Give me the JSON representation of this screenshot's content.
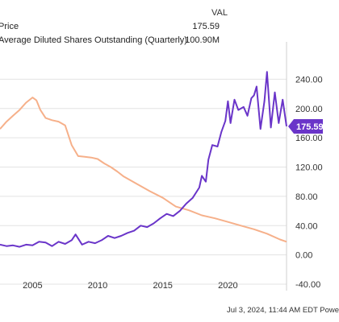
{
  "legend": {
    "header": "VAL",
    "rows": [
      {
        "name": "Price",
        "value": "175.59"
      },
      {
        "name": "Average Diluted Shares Outstanding (Quarterly)",
        "value": "100.90M"
      }
    ]
  },
  "footer": "Jul 3, 2024, 11:44 AM EDT Powe",
  "colors": {
    "price": "#6a35c9",
    "shares": "#f6b08a",
    "grid": "#e3e3e3",
    "badge": "#6a35c9"
  },
  "chart_data": {
    "type": "line",
    "x_range": [
      2002.5,
      2024.5
    ],
    "ylim": [
      -40,
      280
    ],
    "y_ticks": [
      -40,
      0,
      40,
      80,
      120,
      160,
      200,
      240
    ],
    "y_tick_labels": [
      "-40.00",
      "0.00",
      "40.00",
      "80.00",
      "120.00",
      "160.00",
      "200.00",
      "240.00"
    ],
    "x_ticks": [
      2005,
      2010,
      2015,
      2020
    ],
    "x_tick_labels": [
      "2005",
      "2010",
      "2015",
      "2020"
    ],
    "grid": "horizontal",
    "last_value_label": "175.59",
    "series": [
      {
        "name": "Price",
        "x": [
          2002.5,
          2003,
          2003.5,
          2004,
          2004.5,
          2005,
          2005.5,
          2006,
          2006.5,
          2007,
          2007.5,
          2008,
          2008.3,
          2008.8,
          2009.3,
          2009.8,
          2010.3,
          2010.8,
          2011.3,
          2011.8,
          2012.3,
          2012.8,
          2013.3,
          2013.8,
          2014.3,
          2014.8,
          2015.3,
          2015.8,
          2016.3,
          2016.8,
          2017.3,
          2017.8,
          2018,
          2018.3,
          2018.5,
          2018.8,
          2019.2,
          2019.5,
          2019.8,
          2020,
          2020.2,
          2020.5,
          2020.8,
          2021.2,
          2021.5,
          2021.8,
          2022,
          2022.2,
          2022.5,
          2022.8,
          2023,
          2023.3,
          2023.6,
          2023.9,
          2024.2,
          2024.5
        ],
        "values": [
          14,
          12,
          13,
          11,
          14,
          13,
          18,
          17,
          12,
          18,
          15,
          20,
          28,
          14,
          18,
          16,
          20,
          26,
          23,
          26,
          30,
          33,
          40,
          38,
          43,
          50,
          56,
          53,
          60,
          70,
          78,
          92,
          108,
          100,
          130,
          150,
          148,
          168,
          183,
          210,
          180,
          212,
          198,
          202,
          190,
          214,
          218,
          230,
          172,
          210,
          250,
          174,
          222,
          180,
          212,
          175.59
        ]
      },
      {
        "name": "Average Diluted Shares Outstanding (Quarterly)",
        "x": [
          2002.5,
          2003,
          2003.5,
          2004,
          2004.5,
          2005,
          2005.3,
          2005.6,
          2006,
          2006.5,
          2007,
          2007.5,
          2008,
          2008.5,
          2009,
          2009.5,
          2010,
          2010.5,
          2011,
          2011.5,
          2012,
          2013,
          2014,
          2015,
          2016,
          2017,
          2018,
          2019,
          2020,
          2021,
          2022,
          2023,
          2024,
          2024.5
        ],
        "values": [
          172,
          182,
          190,
          198,
          208,
          215,
          211,
          198,
          187,
          184,
          182,
          177,
          150,
          135,
          134,
          133,
          131,
          125,
          120,
          114,
          107,
          97,
          87,
          78,
          66,
          61,
          54,
          50,
          45,
          40,
          35,
          29,
          21,
          18
        ]
      }
    ]
  }
}
